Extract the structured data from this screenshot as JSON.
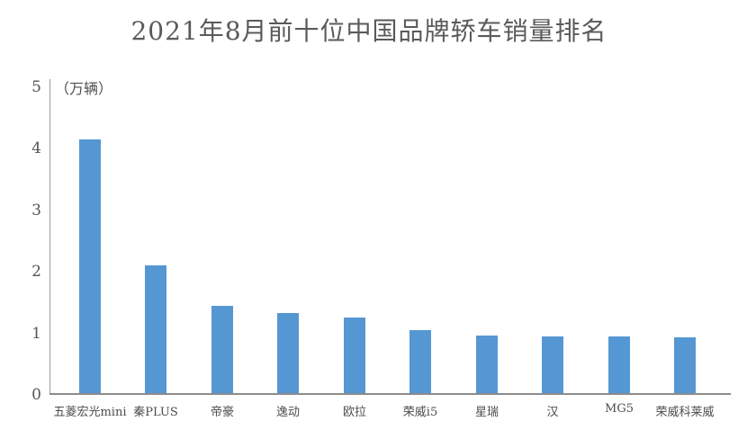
{
  "title": "2021年8月前十位中国品牌轿车销量排名",
  "unit_label": "（万辆）",
  "chart_data": {
    "type": "bar",
    "title": "2021年8月前十位中国品牌轿车销量排名",
    "ylabel": "（万辆）",
    "categories": [
      "五菱宏光mini",
      "秦PLUS",
      "帝豪",
      "逸动",
      "欧拉",
      "荣威i5",
      "星瑞",
      "汉",
      "MG5",
      "荣威科莱威"
    ],
    "values": [
      4.13,
      2.07,
      1.42,
      1.3,
      1.23,
      1.03,
      0.93,
      0.92,
      0.92,
      0.9
    ],
    "yticks": [
      0,
      1,
      2,
      3,
      4,
      5
    ],
    "ylim": [
      0,
      5
    ],
    "grid": false,
    "legend": false,
    "bar_color": "#5597d3",
    "axis_color": "#8c8c8c",
    "text_color": "#5a5a5a"
  }
}
